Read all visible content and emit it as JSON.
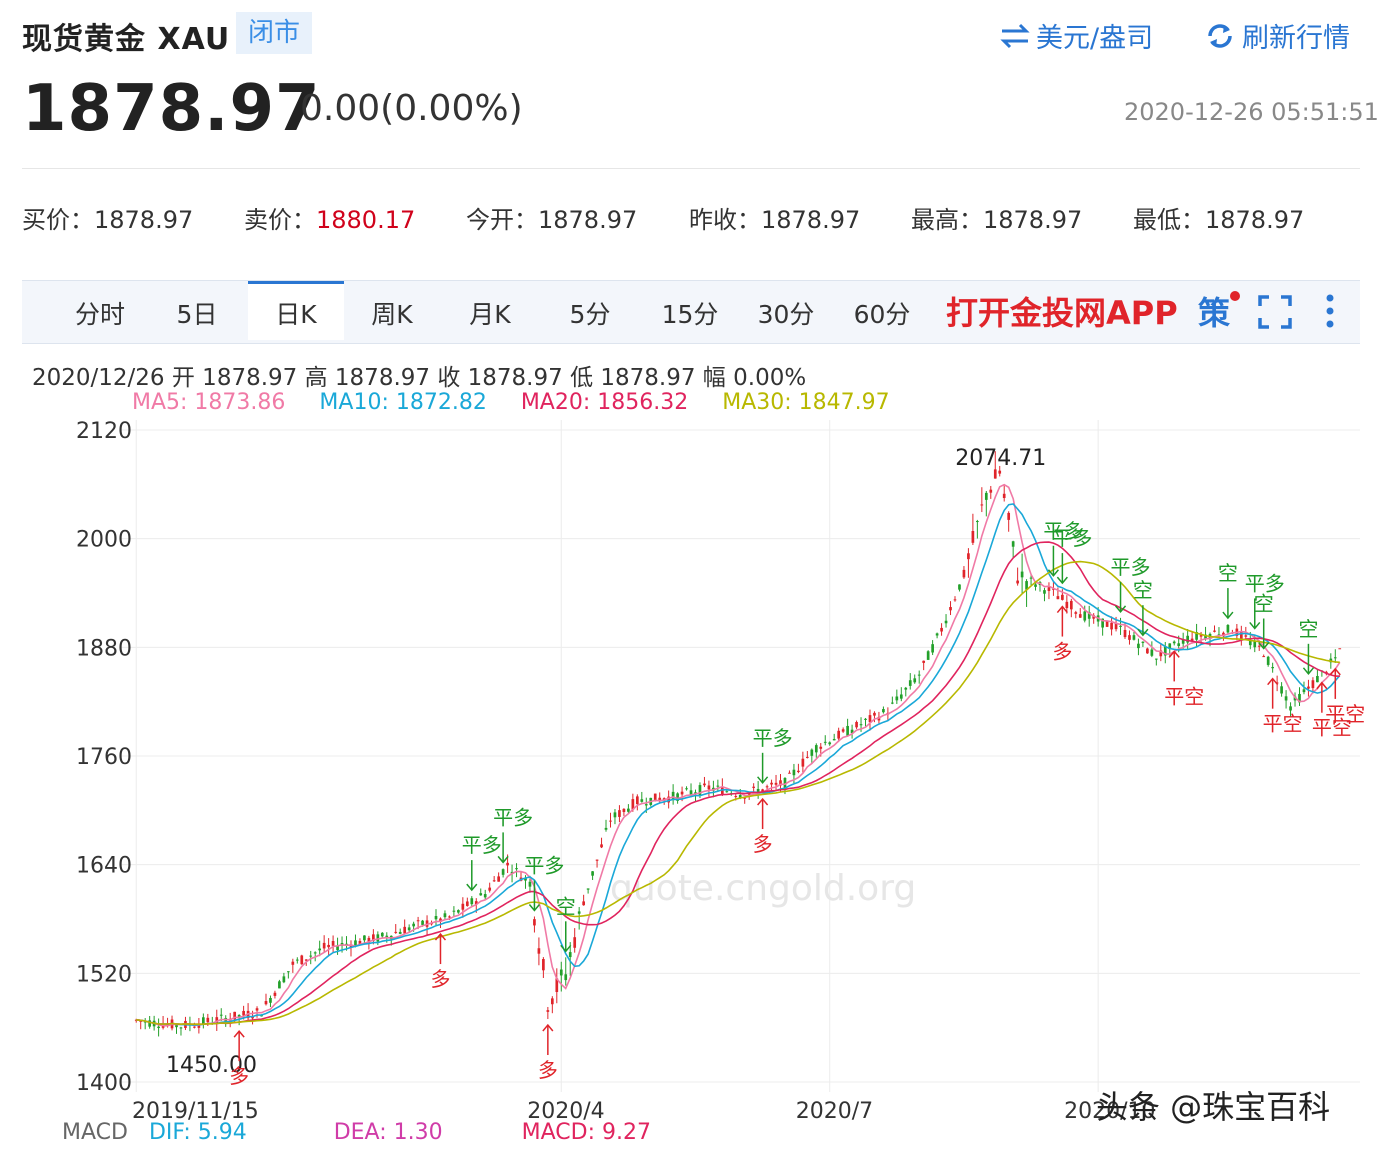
{
  "header": {
    "title": "现货黄金 XAU",
    "badge": "闭市",
    "currency_label": "美元/盎司",
    "refresh_label": "刷新行情",
    "price": "1878.97",
    "change": "0.00(0.00%)",
    "datetime": "2020-12-26 05:51:51"
  },
  "quotes": [
    {
      "label": "买价：",
      "value": "1878.97",
      "red": false
    },
    {
      "label": "卖价：",
      "value": "1880.17",
      "red": true
    },
    {
      "label": "今开：",
      "value": "1878.97",
      "red": false
    },
    {
      "label": "昨收：",
      "value": "1878.97",
      "red": false
    },
    {
      "label": "最高：",
      "value": "1878.97",
      "red": false
    },
    {
      "label": "最低：",
      "value": "1878.97",
      "red": false
    }
  ],
  "tabs": [
    {
      "label": "分时",
      "active": false
    },
    {
      "label": "5日",
      "active": false
    },
    {
      "label": "日K",
      "active": true
    },
    {
      "label": "周K",
      "active": false
    },
    {
      "label": "月K",
      "active": false
    },
    {
      "label": "5分",
      "active": false
    },
    {
      "label": "15分",
      "active": false
    },
    {
      "label": "30分",
      "active": false
    },
    {
      "label": "60分",
      "active": false
    }
  ],
  "toolbar": {
    "open_app": "打开金投网APP",
    "strategy": "策"
  },
  "ohlc_line": "2020/12/26  开 1878.97  高 1878.97  收 1878.97  低 1878.97  幅 0.00%",
  "ma_labels": [
    {
      "text": "MA5: 1873.86",
      "color": "#f07aa6"
    },
    {
      "text": "MA10: 1872.82",
      "color": "#1aa8d8"
    },
    {
      "text": "MA20: 1856.32",
      "color": "#e0245e"
    },
    {
      "text": "MA30: 1847.97",
      "color": "#b8b800"
    }
  ],
  "macd": {
    "label": "MACD",
    "dif": "DIF: 5.94",
    "dea": "DEA: 1.30",
    "macd": "MACD: 9.27"
  },
  "watermark": {
    "site": "quote.cngold.org",
    "corner": "头条 @珠宝百科"
  },
  "chart_data": {
    "type": "candlestick",
    "title": "",
    "ylim": [
      1400,
      2120
    ],
    "yticks": [
      1400,
      1520,
      1640,
      1760,
      1880,
      2000,
      2120
    ],
    "x_tick_labels": [
      "2019/11/15",
      "2020/4",
      "2020/7",
      "2020/10"
    ],
    "x_tick_positions": [
      0,
      95,
      155,
      215
    ],
    "n_bars": 270,
    "high_label": "2074.71",
    "low_label": "1450.00",
    "close_series_anchors": [
      [
        0,
        1468
      ],
      [
        10,
        1462
      ],
      [
        20,
        1470
      ],
      [
        28,
        1478
      ],
      [
        35,
        1530
      ],
      [
        42,
        1548
      ],
      [
        55,
        1560
      ],
      [
        62,
        1572
      ],
      [
        70,
        1582
      ],
      [
        78,
        1608
      ],
      [
        83,
        1640
      ],
      [
        88,
        1620
      ],
      [
        92,
        1490
      ],
      [
        96,
        1520
      ],
      [
        100,
        1600
      ],
      [
        106,
        1690
      ],
      [
        112,
        1710
      ],
      [
        120,
        1715
      ],
      [
        128,
        1725
      ],
      [
        136,
        1718
      ],
      [
        145,
        1730
      ],
      [
        152,
        1770
      ],
      [
        160,
        1790
      ],
      [
        168,
        1810
      ],
      [
        175,
        1850
      ],
      [
        180,
        1900
      ],
      [
        185,
        1960
      ],
      [
        190,
        2050
      ],
      [
        193,
        2074
      ],
      [
        197,
        1960
      ],
      [
        205,
        1940
      ],
      [
        212,
        1915
      ],
      [
        220,
        1900
      ],
      [
        228,
        1870
      ],
      [
        235,
        1890
      ],
      [
        245,
        1900
      ],
      [
        252,
        1875
      ],
      [
        258,
        1815
      ],
      [
        263,
        1840
      ],
      [
        270,
        1878
      ]
    ],
    "signals": [
      {
        "bar": 23,
        "text": "多",
        "dir": "up"
      },
      {
        "bar": 68,
        "text": "多",
        "dir": "up"
      },
      {
        "bar": 75,
        "text": "平多",
        "dir": "down"
      },
      {
        "bar": 82,
        "text": "平多",
        "dir": "down"
      },
      {
        "bar": 89,
        "text": "平多",
        "dir": "down"
      },
      {
        "bar": 96,
        "text": "空",
        "dir": "down"
      },
      {
        "bar": 92,
        "text": "多",
        "dir": "up"
      },
      {
        "bar": 140,
        "text": "平多",
        "dir": "down"
      },
      {
        "bar": 140,
        "text": "多",
        "dir": "up"
      },
      {
        "bar": 207,
        "text": "平多",
        "dir": "down"
      },
      {
        "bar": 205,
        "text": "平多",
        "dir": "down"
      },
      {
        "bar": 207,
        "text": "多",
        "dir": "up"
      },
      {
        "bar": 220,
        "text": "平多",
        "dir": "down"
      },
      {
        "bar": 225,
        "text": "空",
        "dir": "down"
      },
      {
        "bar": 232,
        "text": "平空",
        "dir": "up"
      },
      {
        "bar": 244,
        "text": "空",
        "dir": "down"
      },
      {
        "bar": 250,
        "text": "平多",
        "dir": "down"
      },
      {
        "bar": 252,
        "text": "空",
        "dir": "down"
      },
      {
        "bar": 254,
        "text": "平空",
        "dir": "up"
      },
      {
        "bar": 262,
        "text": "空",
        "dir": "down"
      },
      {
        "bar": 265,
        "text": "平空",
        "dir": "up"
      },
      {
        "bar": 268,
        "text": "平空",
        "dir": "up"
      }
    ]
  }
}
